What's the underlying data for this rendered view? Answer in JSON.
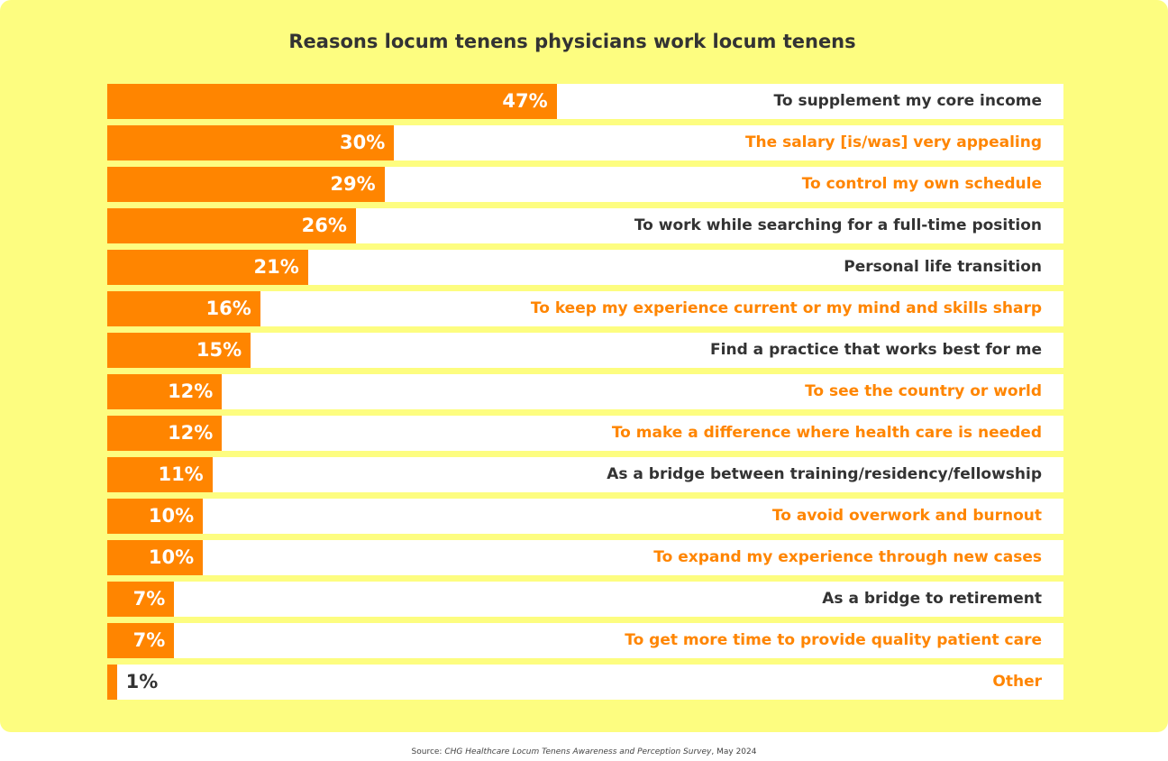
{
  "chart_data": {
    "type": "bar",
    "orientation": "horizontal",
    "title": "Reasons locum tenens physicians work locum tenens",
    "xlim": [
      0,
      100
    ],
    "grid": false,
    "categories": [
      "To supplement my core income",
      "The salary [is/was] very appealing",
      "To control my own schedule",
      "To work while searching for a full-time position",
      "Personal life transition",
      "To keep my experience current or my mind and skills sharp",
      "Find a practice that works best for me",
      "To see the country or world",
      "To make a difference where health care is needed",
      "As a bridge between training/residency/fellowship",
      "To avoid overwork and burnout",
      "To expand my experience through new cases",
      "As a bridge to retirement",
      "To get more time to provide quality patient care",
      "Other"
    ],
    "values": [
      47,
      30,
      29,
      26,
      21,
      16,
      15,
      12,
      12,
      11,
      10,
      10,
      7,
      7,
      1
    ],
    "value_labels": [
      "47%",
      "30%",
      "29%",
      "26%",
      "21%",
      "16%",
      "15%",
      "12%",
      "12%",
      "11%",
      "10%",
      "10%",
      "7%",
      "7%",
      "1%"
    ],
    "label_colors": [
      "#333333",
      "#ff8500",
      "#ff8500",
      "#333333",
      "#333333",
      "#ff8500",
      "#333333",
      "#ff8500",
      "#ff8500",
      "#333333",
      "#ff8500",
      "#ff8500",
      "#333333",
      "#ff8500",
      "#ff8500"
    ]
  },
  "colors": {
    "bar": "#ff8500",
    "background": "#fdfd80",
    "track": "#ffffff"
  },
  "source": {
    "prefix": "Source: ",
    "title": "CHG Healthcare Locum Tenens Awareness and Perception Survey",
    "suffix": ", May 2024"
  }
}
